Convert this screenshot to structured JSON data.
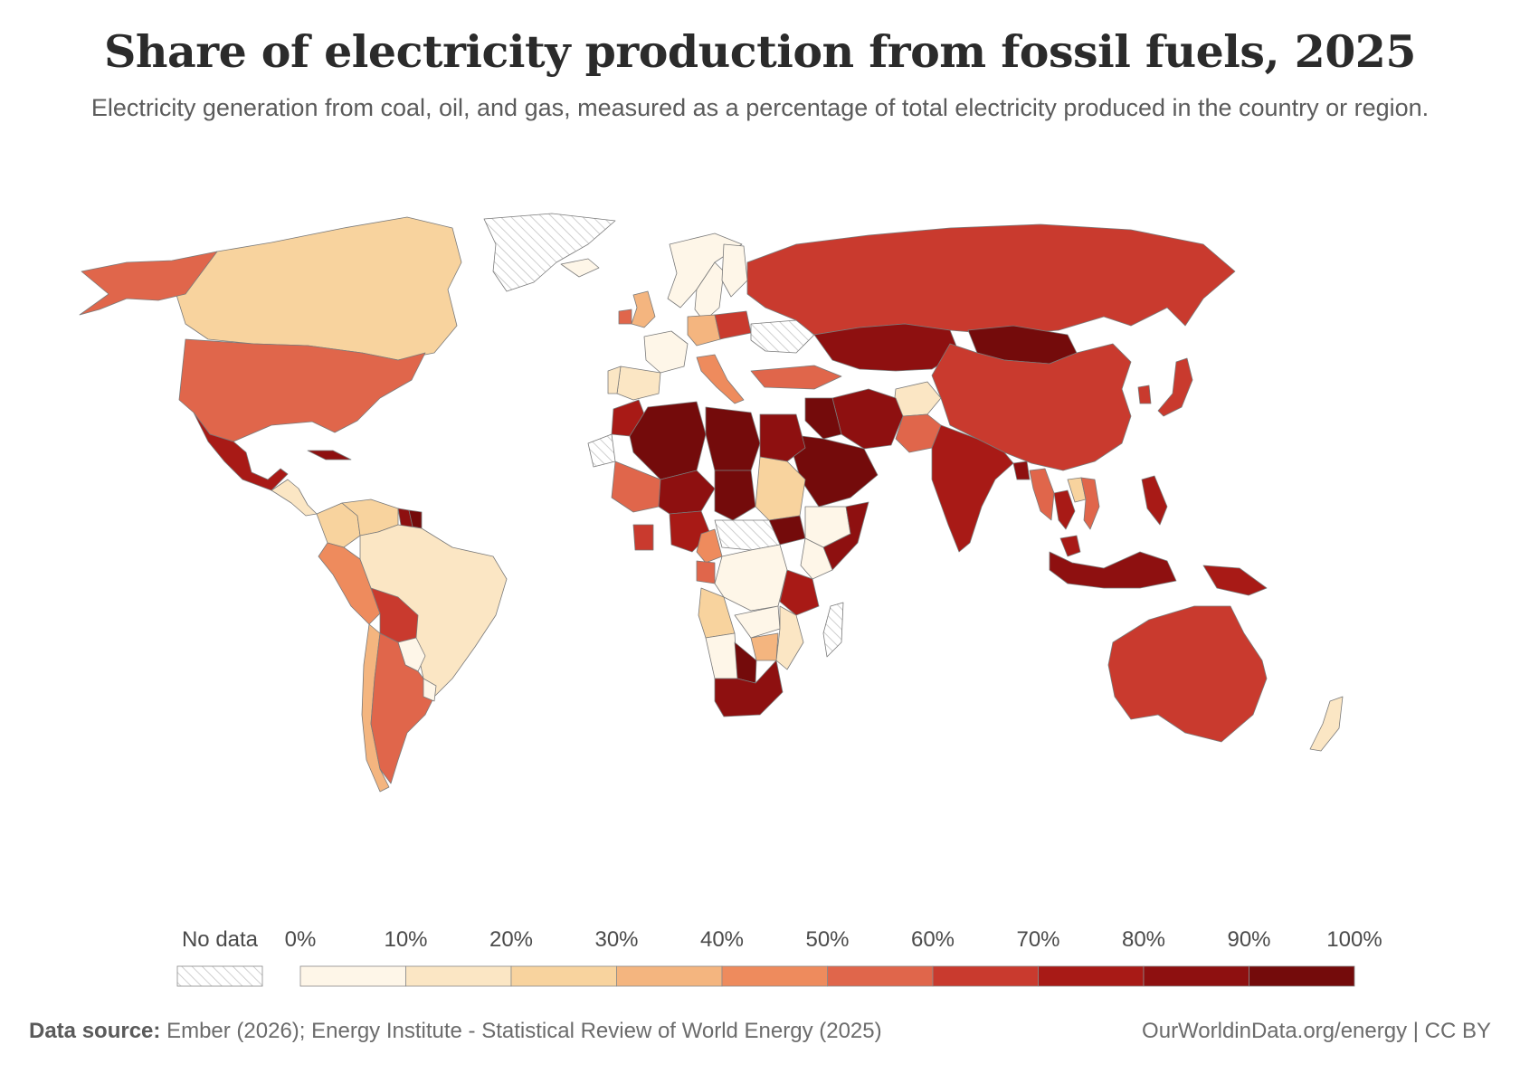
{
  "title": "Share of electricity production from fossil fuels, 2025",
  "subtitle": "Electricity generation from coal, oil, and gas, measured as a percentage of total electricity produced in the country or region.",
  "legend": {
    "no_data_label": "No data",
    "ticks": [
      "0%",
      "10%",
      "20%",
      "30%",
      "40%",
      "50%",
      "60%",
      "70%",
      "80%",
      "90%",
      "100%"
    ],
    "bins": [
      {
        "from": 0,
        "to": 10,
        "color": "#fef6e8"
      },
      {
        "from": 10,
        "to": 20,
        "color": "#fbe6c4"
      },
      {
        "from": 20,
        "to": 30,
        "color": "#f8d39e"
      },
      {
        "from": 30,
        "to": 40,
        "color": "#f4b57f"
      },
      {
        "from": 40,
        "to": 50,
        "color": "#ee8b5d"
      },
      {
        "from": 50,
        "to": 60,
        "color": "#e0664b"
      },
      {
        "from": 60,
        "to": 70,
        "color": "#c93a2e"
      },
      {
        "from": 70,
        "to": 80,
        "color": "#a81a16"
      },
      {
        "from": 80,
        "to": 90,
        "color": "#8e1010"
      },
      {
        "from": 90,
        "to": 100,
        "color": "#740b0b"
      }
    ]
  },
  "chart_data": {
    "type": "choropleth",
    "metric": "Share of electricity production from fossil fuels",
    "year": 2025,
    "unit": "%",
    "regions": [
      {
        "name": "Canada",
        "band": "20-30"
      },
      {
        "name": "Alaska",
        "band": "50-60"
      },
      {
        "name": "United States",
        "band": "50-60"
      },
      {
        "name": "Greenland",
        "band": "no data"
      },
      {
        "name": "Mexico",
        "band": "70-80"
      },
      {
        "name": "Cuba",
        "band": "80-90"
      },
      {
        "name": "Central America",
        "band": "10-30"
      },
      {
        "name": "Venezuela",
        "band": "20-30"
      },
      {
        "name": "Colombia",
        "band": "20-30"
      },
      {
        "name": "Peru",
        "band": "40-50"
      },
      {
        "name": "Brazil",
        "band": "10-20"
      },
      {
        "name": "Bolivia",
        "band": "60-70"
      },
      {
        "name": "Paraguay",
        "band": "0-10"
      },
      {
        "name": "Chile",
        "band": "30-40"
      },
      {
        "name": "Argentina",
        "band": "50-60"
      },
      {
        "name": "Uruguay",
        "band": "0-10"
      },
      {
        "name": "Suriname",
        "band": "90-100"
      },
      {
        "name": "Guyana",
        "band": "80-90"
      },
      {
        "name": "Iceland",
        "band": "0-10"
      },
      {
        "name": "Norway",
        "band": "0-10"
      },
      {
        "name": "Sweden",
        "band": "0-10"
      },
      {
        "name": "Finland",
        "band": "0-10"
      },
      {
        "name": "United Kingdom",
        "band": "30-40"
      },
      {
        "name": "Ireland",
        "band": "50-60"
      },
      {
        "name": "France",
        "band": "0-10"
      },
      {
        "name": "Spain",
        "band": "10-20"
      },
      {
        "name": "Portugal",
        "band": "10-20"
      },
      {
        "name": "Germany",
        "band": "30-40"
      },
      {
        "name": "Poland",
        "band": "60-70"
      },
      {
        "name": "Italy",
        "band": "40-50"
      },
      {
        "name": "Ukraine",
        "band": "no data"
      },
      {
        "name": "Russia",
        "band": "60-70"
      },
      {
        "name": "Turkey",
        "band": "50-60"
      },
      {
        "name": "Kazakhstan",
        "band": "80-90"
      },
      {
        "name": "Mongolia",
        "band": "90-100"
      },
      {
        "name": "China",
        "band": "60-70"
      },
      {
        "name": "Japan",
        "band": "60-70"
      },
      {
        "name": "South Korea",
        "band": "60-70"
      },
      {
        "name": "Afghanistan",
        "band": "10-20"
      },
      {
        "name": "Iran",
        "band": "80-90"
      },
      {
        "name": "Iraq",
        "band": "90-100"
      },
      {
        "name": "Saudi Arabia",
        "band": "90-100"
      },
      {
        "name": "Pakistan",
        "band": "50-60"
      },
      {
        "name": "India",
        "band": "70-80"
      },
      {
        "name": "Bangladesh",
        "band": "80-90"
      },
      {
        "name": "Myanmar",
        "band": "50-60"
      },
      {
        "name": "Thailand",
        "band": "70-80"
      },
      {
        "name": "Laos",
        "band": "20-30"
      },
      {
        "name": "Vietnam",
        "band": "50-60"
      },
      {
        "name": "Philippines",
        "band": "70-80"
      },
      {
        "name": "Malaysia",
        "band": "70-80"
      },
      {
        "name": "Indonesia",
        "band": "80-90"
      },
      {
        "name": "Papua New Guinea",
        "band": "70-80"
      },
      {
        "name": "Australia",
        "band": "60-70"
      },
      {
        "name": "New Zealand",
        "band": "10-20"
      },
      {
        "name": "Morocco",
        "band": "70-80"
      },
      {
        "name": "Algeria",
        "band": "90-100"
      },
      {
        "name": "Libya",
        "band": "90-100"
      },
      {
        "name": "Egypt",
        "band": "80-90"
      },
      {
        "name": "Western Sahara",
        "band": "no data"
      },
      {
        "name": "Mali",
        "band": "50-60"
      },
      {
        "name": "Niger",
        "band": "80-90"
      },
      {
        "name": "Chad",
        "band": "90-100"
      },
      {
        "name": "Sudan",
        "band": "20-30"
      },
      {
        "name": "South Sudan",
        "band": "90-100"
      },
      {
        "name": "Ethiopia",
        "band": "0-10"
      },
      {
        "name": "Somalia",
        "band": "80-90"
      },
      {
        "name": "Nigeria",
        "band": "70-80"
      },
      {
        "name": "Ghana",
        "band": "60-70"
      },
      {
        "name": "Cameroon",
        "band": "40-50"
      },
      {
        "name": "Gabon",
        "band": "50-60"
      },
      {
        "name": "DR Congo",
        "band": "0-10"
      },
      {
        "name": "Central African Republic",
        "band": "no data"
      },
      {
        "name": "Tanzania",
        "band": "70-80"
      },
      {
        "name": "Kenya",
        "band": "0-10"
      },
      {
        "name": "Angola",
        "band": "20-30"
      },
      {
        "name": "Zambia",
        "band": "0-10"
      },
      {
        "name": "Mozambique",
        "band": "10-20"
      },
      {
        "name": "Zimbabwe",
        "band": "30-40"
      },
      {
        "name": "Namibia",
        "band": "0-10"
      },
      {
        "name": "Botswana",
        "band": "90-100"
      },
      {
        "name": "South Africa",
        "band": "80-90"
      },
      {
        "name": "Madagascar",
        "band": "no data"
      }
    ]
  },
  "footer": {
    "source_label": "Data source:",
    "source_text": "Ember (2026); Energy Institute - Statistical Review of World Energy (2025)",
    "license": "OurWorldinData.org/energy | CC BY"
  }
}
